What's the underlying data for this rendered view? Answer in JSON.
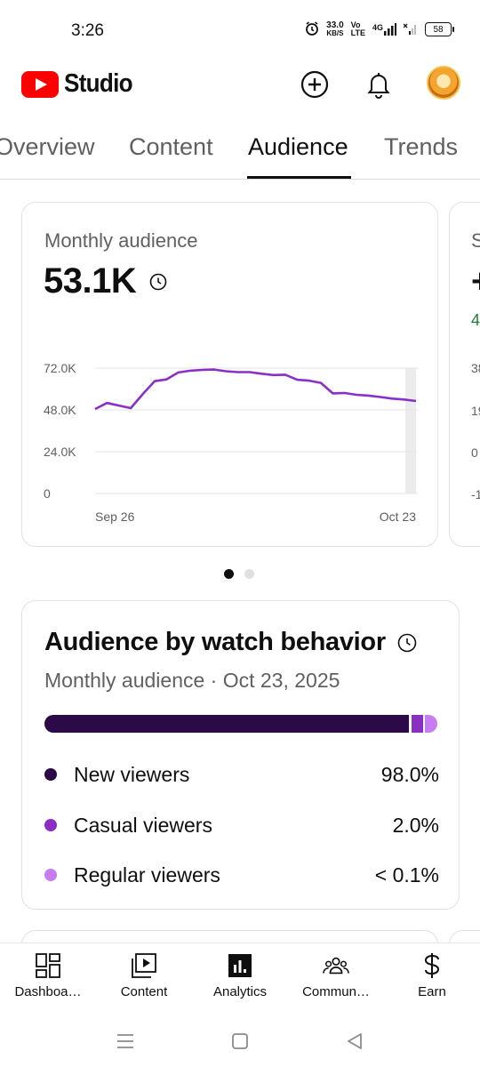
{
  "status_bar": {
    "time": "3:26",
    "speed_value": "33.0",
    "speed_unit": "KB/S",
    "volte_top": "Vo",
    "volte_bottom": "LTE",
    "network": "4G",
    "battery": "58"
  },
  "header": {
    "app_name": "Studio"
  },
  "tabs": [
    {
      "label": "Overview",
      "active": false
    },
    {
      "label": "Content",
      "active": false
    },
    {
      "label": "Audience",
      "active": true
    },
    {
      "label": "Trends",
      "active": false
    }
  ],
  "monthly_card": {
    "label": "Monthly audience",
    "value": "53.1K"
  },
  "chart_data": {
    "type": "line",
    "title": "",
    "xlabel": "",
    "ylabel": "",
    "y_ticks": [
      "72.0K",
      "48.0K",
      "24.0K",
      "0"
    ],
    "x_ticks": [
      "Sep 26",
      "Oct 23"
    ],
    "ylim": [
      0,
      72000
    ],
    "grid": true,
    "color": "#8b2fc9",
    "x": [
      "Sep 26",
      "Sep 27",
      "Sep 28",
      "Sep 29",
      "Sep 30",
      "Oct 1",
      "Oct 2",
      "Oct 3",
      "Oct 4",
      "Oct 5",
      "Oct 6",
      "Oct 7",
      "Oct 8",
      "Oct 9",
      "Oct 10",
      "Oct 11",
      "Oct 12",
      "Oct 13",
      "Oct 14",
      "Oct 15",
      "Oct 16",
      "Oct 17",
      "Oct 18",
      "Oct 19",
      "Oct 20",
      "Oct 21",
      "Oct 22",
      "Oct 23"
    ],
    "values": [
      48500,
      52000,
      50500,
      49000,
      57000,
      64500,
      65500,
      69500,
      70500,
      71000,
      71200,
      70200,
      69700,
      69700,
      68800,
      68000,
      68200,
      65300,
      64800,
      63500,
      57500,
      57700,
      56700,
      56200,
      55400,
      54500,
      54000,
      53100
    ]
  },
  "peek_card": {
    "label": "S",
    "value": "+",
    "delta": "4",
    "ticks": [
      "38",
      "19",
      "0",
      "-1"
    ]
  },
  "carousel": {
    "count": 2,
    "active": 0
  },
  "behavior_card": {
    "title": "Audience by watch behavior",
    "subtitle": "Monthly audience · Oct 23, 2025",
    "segments": [
      {
        "label": "New viewers",
        "value": "98.0%",
        "color": "#2b0a47",
        "share": 98.0
      },
      {
        "label": "Casual viewers",
        "value": "2.0%",
        "color": "#8a2fc2",
        "share": 2.0
      },
      {
        "label": "Regular viewers",
        "value": "< 0.1%",
        "color": "#c77cf0",
        "share": 0.1
      }
    ]
  },
  "bottom_nav": [
    {
      "label": "Dashboa…",
      "icon": "dashboard-icon"
    },
    {
      "label": "Content",
      "icon": "content-icon"
    },
    {
      "label": "Analytics",
      "icon": "analytics-icon",
      "active": true
    },
    {
      "label": "Commun…",
      "icon": "community-icon"
    },
    {
      "label": "Earn",
      "icon": "earn-icon"
    }
  ]
}
